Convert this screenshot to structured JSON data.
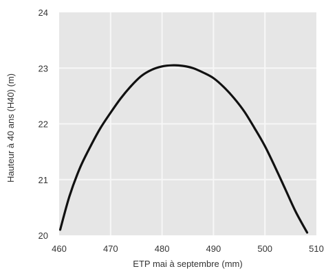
{
  "chart_data": {
    "type": "line",
    "title": "",
    "xlabel": "ETP mai à septembre (mm)",
    "ylabel": "Hauteur à 40 ans (H40) (m)",
    "xlim": [
      460,
      510
    ],
    "ylim": [
      20,
      24
    ],
    "x_ticks": [
      "460",
      "470",
      "480",
      "490",
      "500",
      "510"
    ],
    "y_ticks": [
      "20",
      "21",
      "22",
      "23",
      "24"
    ],
    "grid": true,
    "plot_background": "#e6e6e6",
    "grid_color": "#f7f7f7",
    "line_color": "#111111",
    "series": [
      {
        "x": [
          460.2,
          462,
          464,
          466,
          468,
          470,
          472,
          474,
          476,
          478,
          480,
          482,
          484,
          486,
          488,
          490,
          492,
          494,
          496,
          498,
          500,
          502,
          504,
          506,
          508.2
        ],
        "values": [
          20.1,
          20.7,
          21.2,
          21.58,
          21.92,
          22.2,
          22.46,
          22.68,
          22.86,
          22.97,
          23.03,
          23.05,
          23.04,
          23.0,
          22.92,
          22.82,
          22.66,
          22.46,
          22.22,
          21.92,
          21.6,
          21.22,
          20.82,
          20.42,
          20.05
        ]
      }
    ]
  }
}
